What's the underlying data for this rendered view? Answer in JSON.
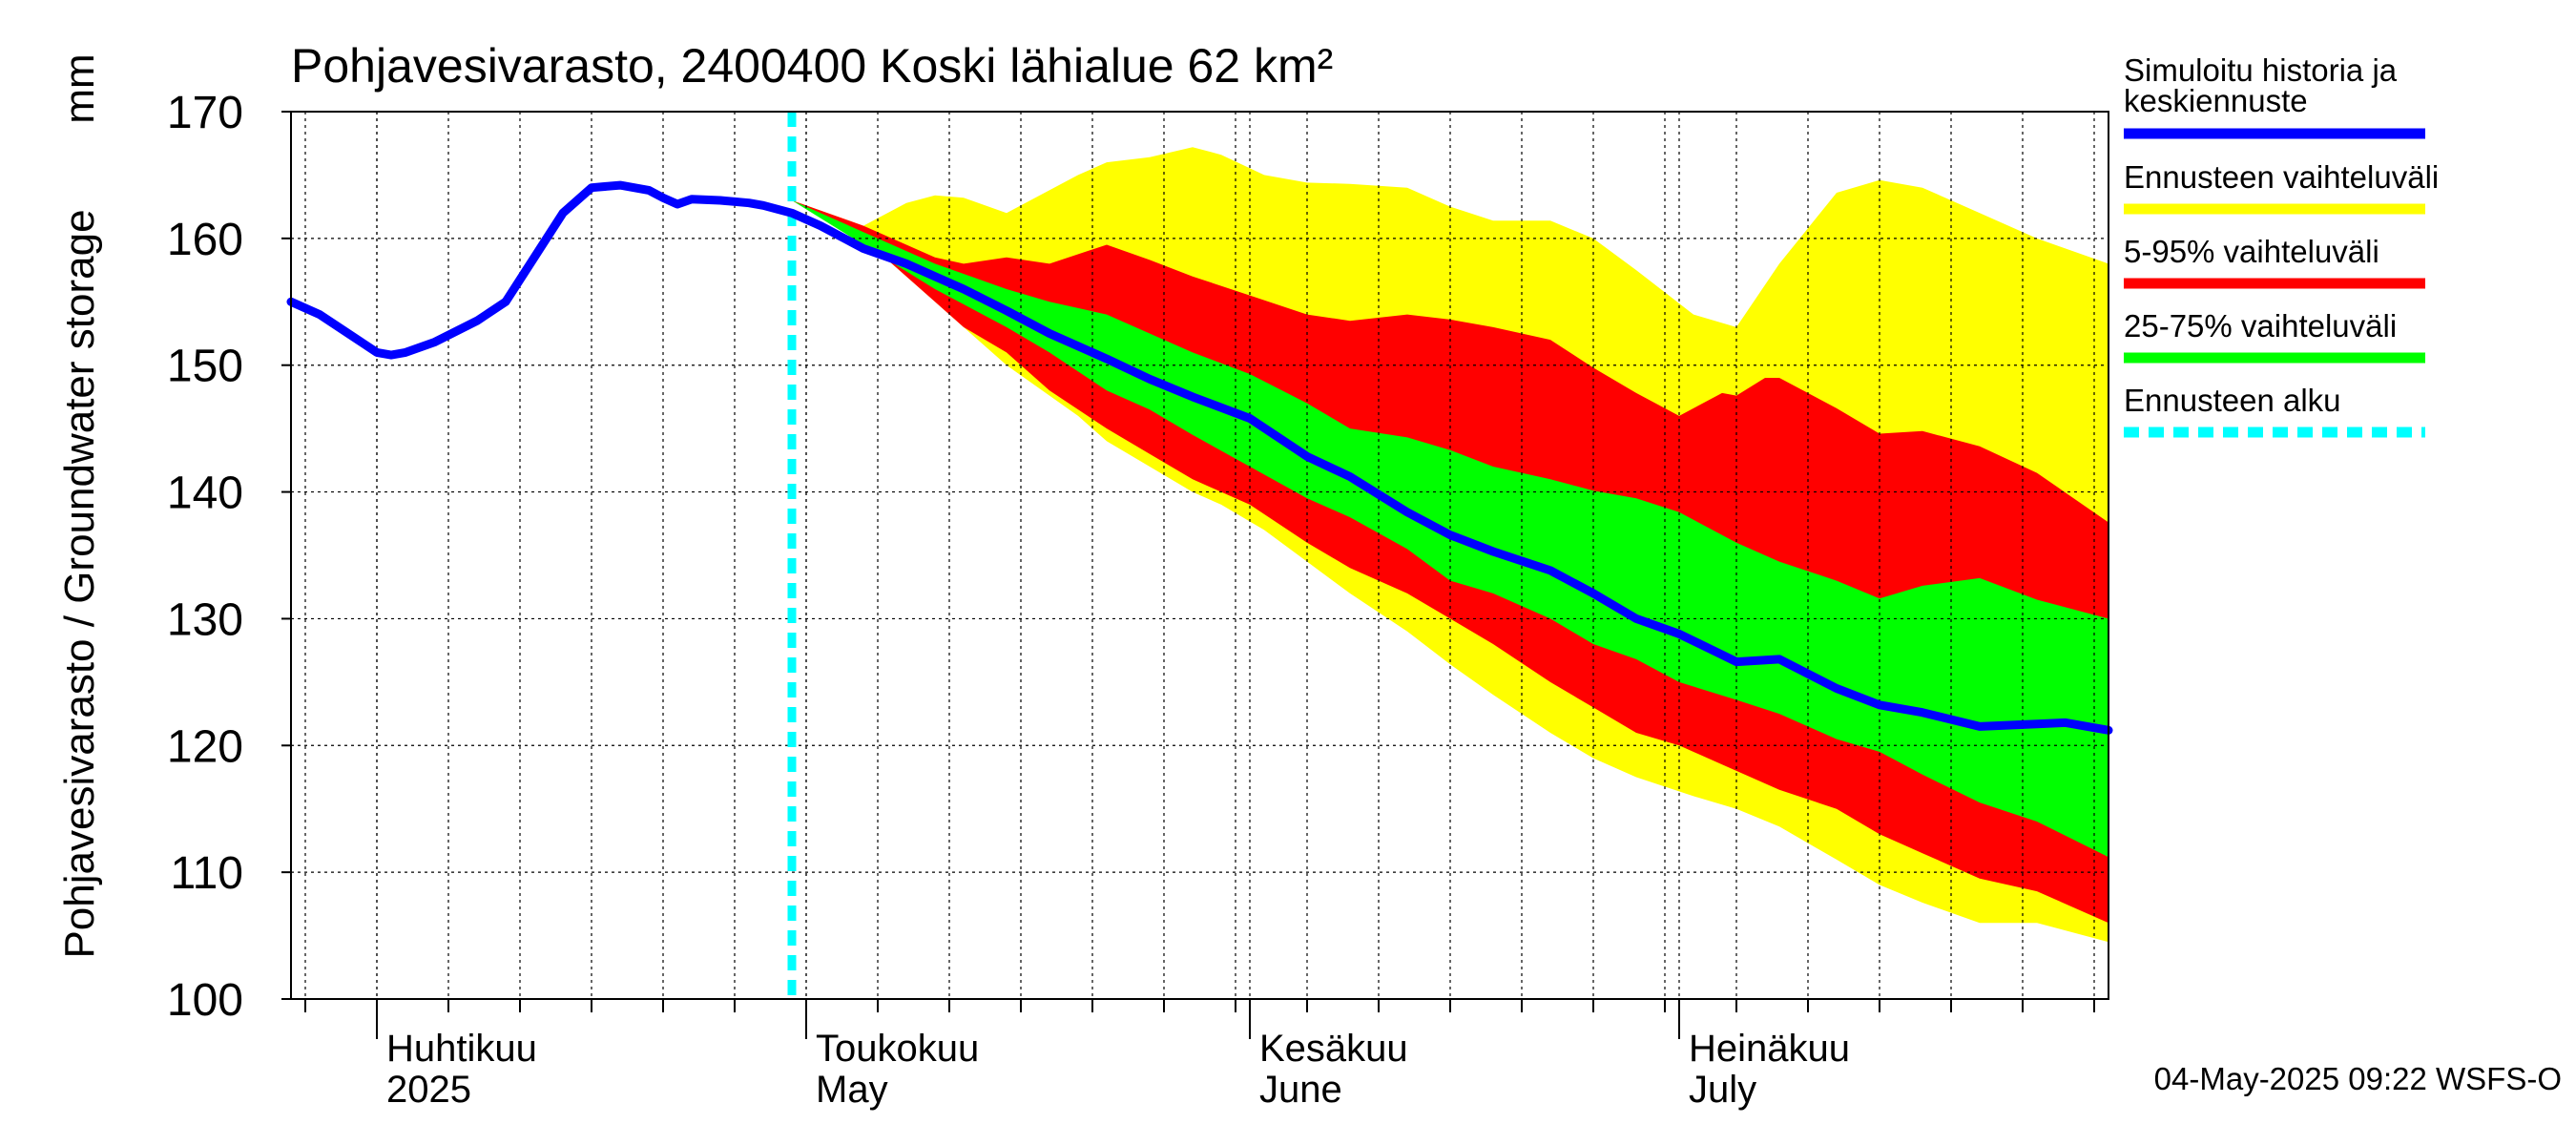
{
  "chart_data": {
    "type": "area",
    "title": "Pohjavesivarasto, 2400400 Koski lähialue 62 km²",
    "ylabel": "Pohjavesivarasto / Groundwater storage",
    "yunit": "mm",
    "ylim": [
      100,
      170
    ],
    "yticks": [
      100,
      110,
      120,
      130,
      140,
      150,
      160,
      170
    ],
    "xlim": [
      "2025-03-26",
      "2025-07-31"
    ],
    "month_labels": [
      {
        "date": "2025-04-01",
        "fi": "Huhtikuu",
        "en": "2025"
      },
      {
        "date": "2025-05-01",
        "fi": "Toukokuu",
        "en": "May"
      },
      {
        "date": "2025-06-01",
        "fi": "Kesäkuu",
        "en": "June"
      },
      {
        "date": "2025-07-01",
        "fi": "Heinäkuu",
        "en": "July"
      }
    ],
    "grid": true,
    "legend_position": "right",
    "forecast_start": "2025-04-30",
    "bands": [
      {
        "name": "Ennusteen vaihteluväli",
        "color": "#ffff00",
        "dates": [
          "2025-04-30",
          "2025-05-05",
          "2025-05-08",
          "2025-05-10",
          "2025-05-12",
          "2025-05-15",
          "2025-05-20",
          "2025-05-22",
          "2025-05-25",
          "2025-05-28",
          "2025-05-30",
          "2025-06-02",
          "2025-06-05",
          "2025-06-08",
          "2025-06-12",
          "2025-06-15",
          "2025-06-18",
          "2025-06-22",
          "2025-06-25",
          "2025-06-28",
          "2025-07-02",
          "2025-07-05",
          "2025-07-08",
          "2025-07-12",
          "2025-07-15",
          "2025-07-18",
          "2025-07-22",
          "2025-07-26",
          "2025-07-31"
        ],
        "upper": [
          163,
          161,
          162.8,
          163.4,
          163.2,
          162,
          165,
          166,
          166.4,
          167.2,
          166.6,
          165,
          164.4,
          164.3,
          164,
          162.5,
          161.4,
          161.4,
          160,
          157.5,
          154,
          153,
          158,
          163.6,
          164.6,
          164,
          162,
          160,
          158
        ],
        "lower": [
          163,
          160,
          157,
          155,
          153,
          150,
          146,
          144,
          142,
          140,
          139,
          137,
          134.5,
          132,
          129,
          126.4,
          124,
          121,
          119,
          117.5,
          116,
          115,
          113.6,
          111,
          109,
          107.6,
          106,
          106,
          104.5
        ]
      },
      {
        "name": "5-95% vaihteluväli",
        "color": "#ff0000",
        "dates": [
          "2025-04-30",
          "2025-05-05",
          "2025-05-08",
          "2025-05-10",
          "2025-05-12",
          "2025-05-15",
          "2025-05-18",
          "2025-05-22",
          "2025-05-25",
          "2025-05-28",
          "2025-06-01",
          "2025-06-05",
          "2025-06-08",
          "2025-06-12",
          "2025-06-15",
          "2025-06-18",
          "2025-06-22",
          "2025-06-25",
          "2025-06-28",
          "2025-07-01",
          "2025-07-04",
          "2025-07-05",
          "2025-07-07",
          "2025-07-08",
          "2025-07-12",
          "2025-07-15",
          "2025-07-18",
          "2025-07-22",
          "2025-07-26",
          "2025-07-31"
        ],
        "upper": [
          163,
          161,
          159.5,
          158.5,
          158,
          158.5,
          158,
          159.5,
          158.3,
          157,
          155.5,
          154,
          153.5,
          154,
          153.6,
          153,
          152,
          149.8,
          147.8,
          146,
          147.8,
          147.6,
          149,
          149,
          146.6,
          144.6,
          144.8,
          143.6,
          141.5,
          137.6
        ],
        "lower": [
          163,
          160,
          157,
          155,
          153,
          151,
          148,
          145,
          143,
          141,
          139,
          136,
          134,
          132,
          130,
          128,
          125,
          123,
          121,
          120,
          118.5,
          118,
          117,
          116.5,
          115,
          113,
          111.5,
          109.5,
          108.5,
          106
        ]
      },
      {
        "name": "25-75% vaihteluväli",
        "color": "#00ff00",
        "dates": [
          "2025-04-30",
          "2025-05-05",
          "2025-05-10",
          "2025-05-15",
          "2025-05-18",
          "2025-05-22",
          "2025-05-25",
          "2025-05-28",
          "2025-06-01",
          "2025-06-05",
          "2025-06-08",
          "2025-06-12",
          "2025-06-15",
          "2025-06-18",
          "2025-06-22",
          "2025-06-25",
          "2025-06-28",
          "2025-07-01",
          "2025-07-05",
          "2025-07-08",
          "2025-07-12",
          "2025-07-15",
          "2025-07-18",
          "2025-07-22",
          "2025-07-26",
          "2025-07-31"
        ],
        "upper": [
          163,
          160.5,
          158,
          156,
          155,
          154,
          152.5,
          151,
          149.3,
          147,
          145,
          144.3,
          143.3,
          142,
          141,
          140.1,
          139.5,
          138.4,
          136,
          134.5,
          133,
          131.6,
          132.6,
          133.2,
          131.5,
          130
        ],
        "lower": [
          163,
          159.5,
          156,
          153,
          151,
          148,
          146.5,
          144.5,
          142,
          139.5,
          138,
          135.5,
          133,
          132,
          130,
          128,
          126.8,
          125,
          123.6,
          122.5,
          120.5,
          119.5,
          117.7,
          115.5,
          114,
          111.2
        ]
      }
    ],
    "series": [
      {
        "name": "Simuloitu historia ja keskiennuste",
        "color": "#0000ff",
        "dates": [
          "2025-03-26",
          "2025-03-28",
          "2025-03-30",
          "2025-04-01",
          "2025-04-02",
          "2025-04-03",
          "2025-04-05",
          "2025-04-08",
          "2025-04-10",
          "2025-04-12",
          "2025-04-14",
          "2025-04-16",
          "2025-04-18",
          "2025-04-20",
          "2025-04-21",
          "2025-04-22",
          "2025-04-23",
          "2025-04-25",
          "2025-04-27",
          "2025-04-28",
          "2025-04-30",
          "2025-05-02",
          "2025-05-05",
          "2025-05-08",
          "2025-05-10",
          "2025-05-12",
          "2025-05-15",
          "2025-05-18",
          "2025-05-22",
          "2025-05-25",
          "2025-05-28",
          "2025-06-01",
          "2025-06-05",
          "2025-06-08",
          "2025-06-12",
          "2025-06-15",
          "2025-06-18",
          "2025-06-22",
          "2025-06-25",
          "2025-06-28",
          "2025-07-01",
          "2025-07-05",
          "2025-07-08",
          "2025-07-12",
          "2025-07-15",
          "2025-07-18",
          "2025-07-22",
          "2025-07-26",
          "2025-07-28",
          "2025-07-31"
        ],
        "values": [
          155,
          154,
          152.5,
          151,
          150.8,
          151,
          151.8,
          153.5,
          155,
          158.5,
          162,
          164,
          164.2,
          163.8,
          163.2,
          162.7,
          163.1,
          163,
          162.8,
          162.6,
          162,
          161,
          159.2,
          158,
          157,
          156,
          154.3,
          152.5,
          150.5,
          148.9,
          147.5,
          145.8,
          142.8,
          141.2,
          138.4,
          136.6,
          135.3,
          133.8,
          132,
          130,
          128.8,
          126.6,
          126.8,
          124.5,
          123.2,
          122.6,
          121.5,
          121.7,
          121.8,
          121.2
        ]
      }
    ],
    "legend": [
      {
        "label": "Simuloitu historia ja keskiennuste",
        "color": "#0000ff",
        "style": "solid"
      },
      {
        "label": "Ennusteen vaihteluväli",
        "color": "#ffff00",
        "style": "solid"
      },
      {
        "label": "5-95% vaihteluväli",
        "color": "#ff0000",
        "style": "solid"
      },
      {
        "label": "25-75% vaihteluväli",
        "color": "#00ff00",
        "style": "solid"
      },
      {
        "label": "Ennusteen alku",
        "color": "#00ffff",
        "style": "dashed"
      }
    ],
    "footer": "04-May-2025 09:22 WSFS-O"
  }
}
